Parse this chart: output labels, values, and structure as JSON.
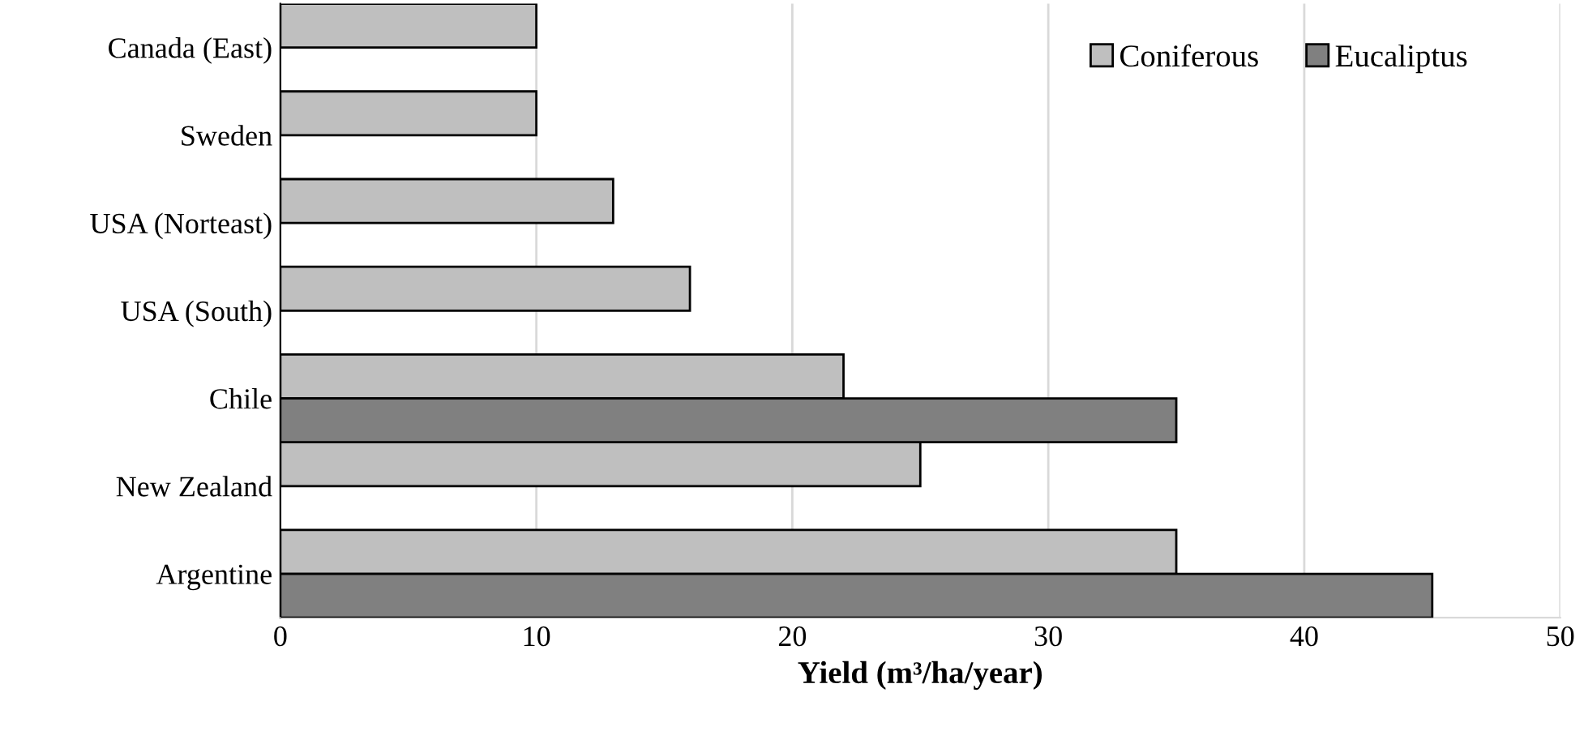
{
  "chart_data": {
    "type": "bar",
    "orientation": "horizontal",
    "xlabel": "Yield (m³/ha/year)",
    "categories": [
      "Canada (East)",
      "Sweden",
      "USA (Norteast)",
      "USA (South)",
      "Chile",
      "New Zealand",
      "Argentine"
    ],
    "series": [
      {
        "name": "Coniferous",
        "color": "#bfbfbf",
        "values": [
          10,
          10,
          13,
          16,
          22,
          25,
          35
        ]
      },
      {
        "name": "Eucaliptus",
        "color": "#808080",
        "values": [
          null,
          null,
          null,
          null,
          35,
          null,
          45
        ]
      }
    ],
    "xlim": [
      0,
      50
    ],
    "xticks": [
      0,
      10,
      20,
      30,
      40,
      50
    ],
    "grid": "x",
    "legend": "top right"
  }
}
